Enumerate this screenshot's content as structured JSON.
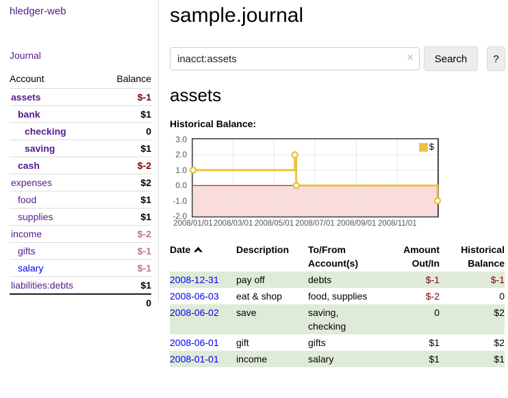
{
  "app": {
    "brand": "hledger-web",
    "nav_journal": "Journal"
  },
  "sidebar": {
    "headers": {
      "account": "Account",
      "balance": "Balance"
    },
    "accounts": [
      {
        "name": "assets",
        "balance": "$-1",
        "indent": 1,
        "bold": true,
        "negative": true,
        "dim": false,
        "link_unvisited": false
      },
      {
        "name": "bank",
        "balance": "$1",
        "indent": 2,
        "bold": true,
        "negative": false,
        "dim": false,
        "link_unvisited": false
      },
      {
        "name": "checking",
        "balance": "0",
        "indent": 3,
        "bold": true,
        "negative": false,
        "dim": false,
        "link_unvisited": false
      },
      {
        "name": "saving",
        "balance": "$1",
        "indent": 3,
        "bold": true,
        "negative": false,
        "dim": false,
        "link_unvisited": false
      },
      {
        "name": "cash",
        "balance": "$-2",
        "indent": 2,
        "bold": true,
        "negative": true,
        "dim": false,
        "link_unvisited": false
      },
      {
        "name": "expenses",
        "balance": "$2",
        "indent": 1,
        "bold": false,
        "negative": false,
        "dim": false,
        "link_unvisited": false
      },
      {
        "name": "food",
        "balance": "$1",
        "indent": 2,
        "bold": false,
        "negative": false,
        "dim": false,
        "link_unvisited": false
      },
      {
        "name": "supplies",
        "balance": "$1",
        "indent": 2,
        "bold": false,
        "negative": false,
        "dim": false,
        "link_unvisited": false
      },
      {
        "name": "income",
        "balance": "$-2",
        "indent": 1,
        "bold": false,
        "negative": true,
        "dim": true,
        "link_unvisited": false
      },
      {
        "name": "gifts",
        "balance": "$-1",
        "indent": 2,
        "bold": false,
        "negative": true,
        "dim": true,
        "link_unvisited": false
      },
      {
        "name": "salary",
        "balance": "$-1",
        "indent": 2,
        "bold": false,
        "negative": true,
        "dim": true,
        "link_unvisited": true
      },
      {
        "name": "liabilities:debts",
        "balance": "$1",
        "indent": 1,
        "bold": false,
        "negative": false,
        "dim": false,
        "link_unvisited": false
      }
    ],
    "total": "0"
  },
  "header": {
    "title": "sample.journal"
  },
  "search": {
    "value": "inacct:assets",
    "clear_icon": "×",
    "button_label": "Search",
    "help_label": "?"
  },
  "register": {
    "heading": "assets",
    "chart_title": "Historical Balance:"
  },
  "chart_data": {
    "type": "line",
    "step": true,
    "title": "Historical Balance",
    "series": [
      {
        "name": "$",
        "color": "#edc240",
        "points": [
          [
            "2008-01-01",
            1
          ],
          [
            "2008-06-01",
            2
          ],
          [
            "2008-06-03",
            0
          ],
          [
            "2008-12-31",
            -1
          ]
        ]
      }
    ],
    "x_ticks": [
      {
        "date": "2008-01-01",
        "label": "2008/01/01"
      },
      {
        "date": "2008-03-01",
        "label": "2008/03/01"
      },
      {
        "date": "2008-05-01",
        "label": "2008/05/01"
      },
      {
        "date": "2008-07-01",
        "label": "2008/07/01"
      },
      {
        "date": "2008-09-01",
        "label": "2008/09/01"
      },
      {
        "date": "2008-11-01",
        "label": "2008/11/01"
      }
    ],
    "y_ticks": [
      "3.0",
      "2.0",
      "1.0",
      "0.0",
      "-1.0",
      "-2.0"
    ],
    "ylim": [
      -2,
      3
    ],
    "xlim": [
      "2008-01-01",
      "2008-12-31"
    ],
    "grid": true,
    "legend_position": "top-right",
    "colors": {
      "line": "#edc240",
      "marker_fill": "#ffffff",
      "negative_region": "#fbdcdc",
      "zero_line": "#8b0000",
      "gridline": "#e6e6e6",
      "border": "#434343"
    }
  },
  "table": {
    "headers": [
      {
        "lines": [
          "Date"
        ],
        "align": "left",
        "sort": "asc"
      },
      {
        "lines": [
          "Description"
        ],
        "align": "left"
      },
      {
        "lines": [
          "To/From",
          "Account(s)"
        ],
        "align": "left"
      },
      {
        "lines": [
          "Amount",
          "Out/In"
        ],
        "align": "right"
      },
      {
        "lines": [
          "Historical",
          "Balance"
        ],
        "align": "right"
      }
    ],
    "rows": [
      {
        "date": "2008-12-31",
        "description": "pay off",
        "accounts": [
          "debts"
        ],
        "amount": "$-1",
        "amount_negative": true,
        "balance": "$-1",
        "balance_negative": true
      },
      {
        "date": "2008-06-03",
        "description": "eat & shop",
        "accounts": [
          "food, supplies"
        ],
        "amount": "$-2",
        "amount_negative": true,
        "balance": "0",
        "balance_negative": false
      },
      {
        "date": "2008-06-02",
        "description": "save",
        "accounts": [
          "saving,",
          "checking"
        ],
        "amount": "0",
        "amount_negative": false,
        "balance": "$2",
        "balance_negative": false
      },
      {
        "date": "2008-06-01",
        "description": "gift",
        "accounts": [
          "gifts"
        ],
        "amount": "$1",
        "amount_negative": false,
        "balance": "$2",
        "balance_negative": false
      },
      {
        "date": "2008-01-01",
        "description": "income",
        "accounts": [
          "salary"
        ],
        "amount": "$1",
        "amount_negative": false,
        "balance": "$1",
        "balance_negative": false
      }
    ]
  },
  "colors": {
    "link_visited": "#551a8b",
    "link_unvisited": "#0000ee",
    "negative": "#7f0000",
    "negative_dim": "#bc7676",
    "row_stripe": "#dfebd8"
  }
}
